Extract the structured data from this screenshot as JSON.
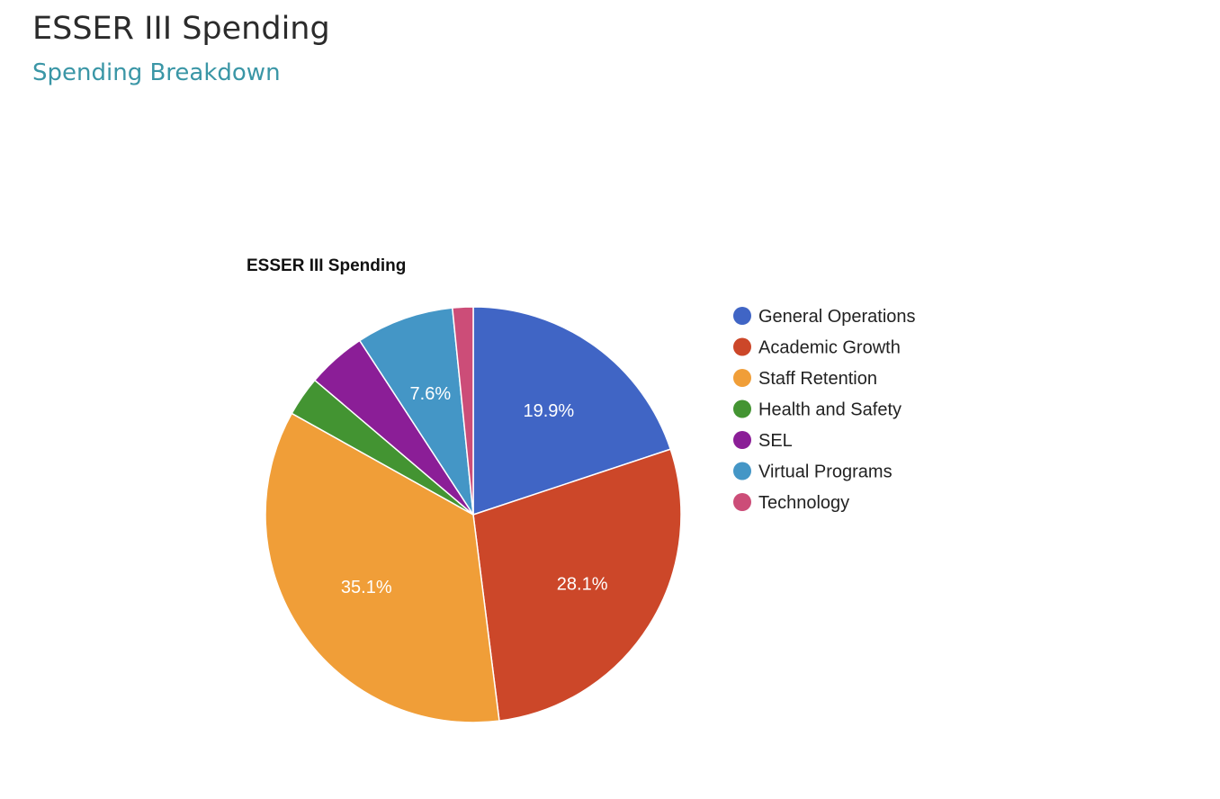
{
  "header": {
    "title": "ESSER III Spending",
    "subtitle": "Spending Breakdown"
  },
  "colors": {
    "title": "#2b2b2b",
    "subtitle": "#3a96a6"
  },
  "chart_data": {
    "type": "pie",
    "title": "ESSER III Spending",
    "legend_position": "right",
    "start_angle_deg": 0,
    "series": [
      {
        "name": "General Operations",
        "value": 19.9,
        "label": "19.9%",
        "color": "#4065c5"
      },
      {
        "name": "Academic Growth",
        "value": 28.1,
        "label": "28.1%",
        "color": "#cc4729"
      },
      {
        "name": "Staff Retention",
        "value": 35.1,
        "label": "35.1%",
        "color": "#f09e38"
      },
      {
        "name": "Health and Safety",
        "value": 3.1,
        "label": "",
        "color": "#439432"
      },
      {
        "name": "SEL",
        "value": 4.6,
        "label": "",
        "color": "#8b1e97"
      },
      {
        "name": "Virtual Programs",
        "value": 7.6,
        "label": "7.6%",
        "color": "#4496c6"
      },
      {
        "name": "Technology",
        "value": 1.6,
        "label": "",
        "color": "#cc4d78"
      }
    ]
  }
}
